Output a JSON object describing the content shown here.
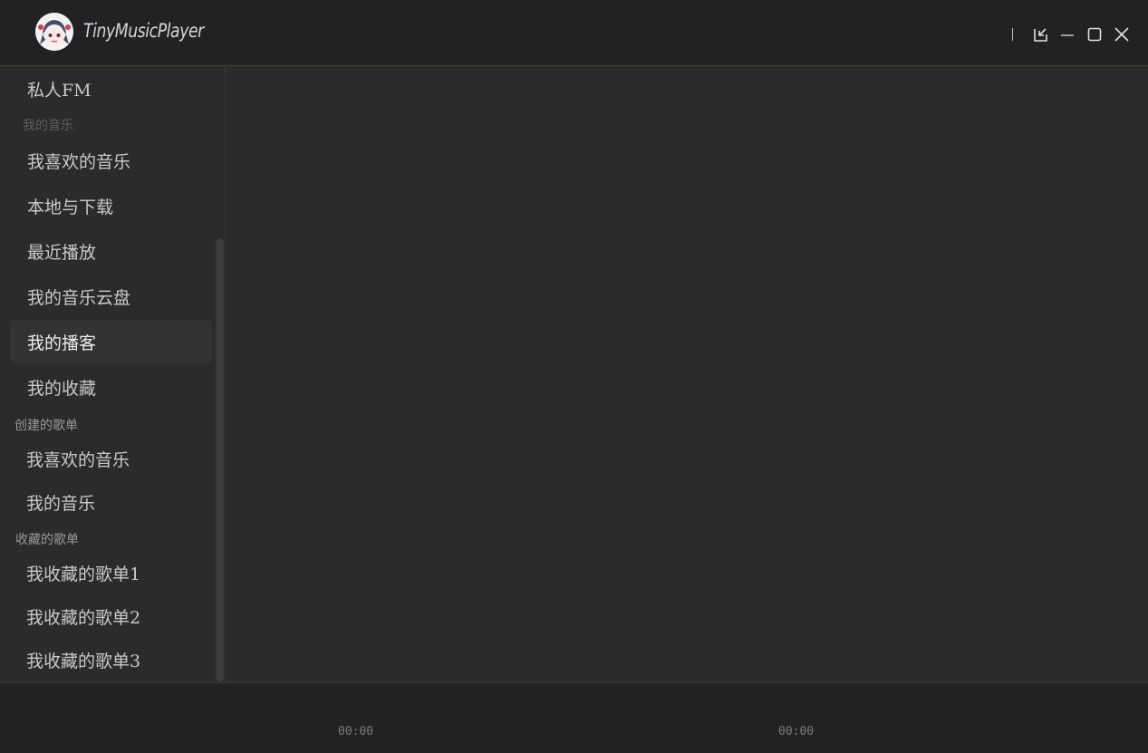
{
  "window": {
    "title": "TinyMusicPlayer",
    "icons": [
      "app-logo",
      "mini-mode-icon",
      "minimize-icon",
      "maximize-icon",
      "close-icon"
    ],
    "accent": "#7a2a2e"
  },
  "sidebar": {
    "top_item": "私人FM",
    "section_my_music": "我的音乐",
    "my_music": [
      "我喜欢的音乐",
      "本地与下载",
      "最近播放",
      "我的音乐云盘",
      "我的播客",
      "我的收藏"
    ],
    "active": "我的播客",
    "section_created": "创建的歌单",
    "created": [
      "我喜欢的音乐",
      "我的音乐"
    ],
    "section_collected": "收藏的歌单",
    "collected": [
      "我收藏的歌单1",
      "我收藏的歌单2",
      "我收藏的歌单3"
    ]
  },
  "player": {
    "current_time": "00:00",
    "total_time": "00:00"
  }
}
